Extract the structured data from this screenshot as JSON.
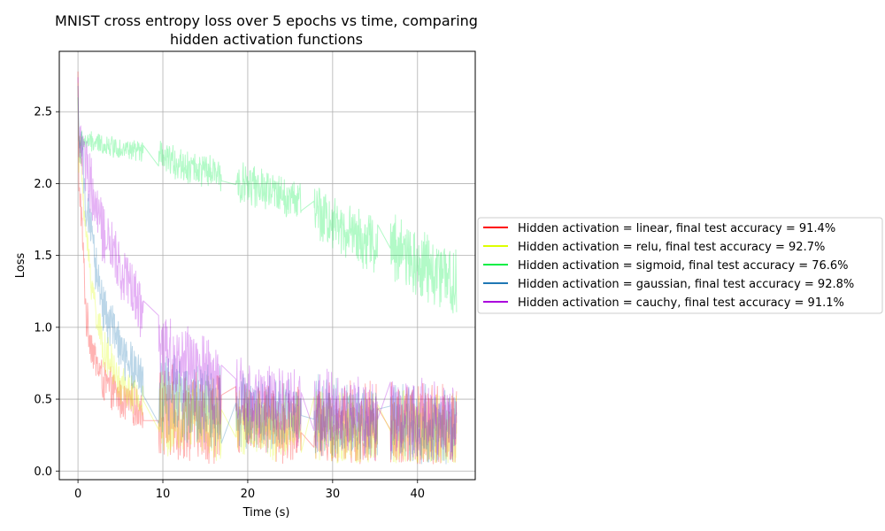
{
  "chart_data": {
    "type": "line",
    "title_lines": [
      "MNIST cross entropy loss over 5 epochs vs time, comparing",
      "hidden activation functions"
    ],
    "xlabel": "Time (s)",
    "ylabel": "Loss",
    "xlim": [
      -2.2,
      46.8
    ],
    "ylim": [
      -0.06,
      2.92
    ],
    "xticks": [
      0,
      10,
      20,
      30,
      40
    ],
    "yticks": [
      0.0,
      0.5,
      1.0,
      1.5,
      2.0,
      2.5
    ],
    "xtick_labels": [
      "0",
      "10",
      "20",
      "30",
      "40"
    ],
    "ytick_labels": [
      "0.0",
      "0.5",
      "1.0",
      "1.5",
      "2.0",
      "2.5"
    ],
    "grid": true,
    "legend_position": "outside-right",
    "epoch_segments": [
      [
        0.1,
        7.7
      ],
      [
        9.5,
        16.9
      ],
      [
        18.6,
        26.3
      ],
      [
        27.8,
        35.3
      ],
      [
        36.8,
        44.6
      ]
    ],
    "series": [
      {
        "name": "Hidden activation = linear, final test accuracy = 91.4%",
        "color": "#ff0000",
        "start": 2.78,
        "points": [
          [
            0.3,
            1.9
          ],
          [
            1,
            1.05
          ],
          [
            2,
            0.78
          ],
          [
            3,
            0.62
          ],
          [
            5,
            0.5
          ],
          [
            7.5,
            0.42
          ],
          [
            9.5,
            0.4
          ],
          [
            12,
            0.38
          ],
          [
            16.9,
            0.35
          ],
          [
            18.6,
            0.36
          ],
          [
            22,
            0.34
          ],
          [
            26.3,
            0.33
          ],
          [
            27.8,
            0.34
          ],
          [
            31,
            0.32
          ],
          [
            35.3,
            0.31
          ],
          [
            36.8,
            0.32
          ],
          [
            40,
            0.31
          ],
          [
            44.6,
            0.3
          ]
        ],
        "noise": [
          0.1,
          0.22,
          0.18,
          0.22,
          0.22
        ]
      },
      {
        "name": "Hidden activation = relu, final test accuracy = 92.7%",
        "color": "#ddff00",
        "start": 2.7,
        "points": [
          [
            0.3,
            2.2
          ],
          [
            1,
            1.6
          ],
          [
            2,
            1.15
          ],
          [
            3,
            0.85
          ],
          [
            5,
            0.6
          ],
          [
            7.5,
            0.48
          ],
          [
            9.5,
            0.42
          ],
          [
            12,
            0.4
          ],
          [
            16.9,
            0.36
          ],
          [
            18.6,
            0.34
          ],
          [
            22,
            0.32
          ],
          [
            26.3,
            0.3
          ],
          [
            27.8,
            0.3
          ],
          [
            31,
            0.29
          ],
          [
            35.3,
            0.27
          ],
          [
            36.8,
            0.28
          ],
          [
            40,
            0.27
          ],
          [
            44.6,
            0.26
          ]
        ],
        "noise": [
          0.1,
          0.2,
          0.17,
          0.2,
          0.2
        ]
      },
      {
        "name": "Hidden activation = sigmoid, final test accuracy = 76.6%",
        "color": "#00ee44",
        "start": 2.6,
        "points": [
          [
            0.3,
            2.3
          ],
          [
            3,
            2.27
          ],
          [
            7.7,
            2.22
          ],
          [
            9.5,
            2.18
          ],
          [
            13,
            2.12
          ],
          [
            16.9,
            2.05
          ],
          [
            18.6,
            2.02
          ],
          [
            22,
            1.95
          ],
          [
            26.3,
            1.88
          ],
          [
            27.8,
            1.8
          ],
          [
            31,
            1.7
          ],
          [
            35.3,
            1.55
          ],
          [
            36.8,
            1.55
          ],
          [
            40,
            1.45
          ],
          [
            44.6,
            1.3
          ]
        ],
        "noise": [
          0.05,
          0.08,
          0.1,
          0.14,
          0.18
        ]
      },
      {
        "name": "Hidden activation = gaussian, final test accuracy = 92.8%",
        "color": "#1f77b4",
        "start": 2.68,
        "points": [
          [
            0.3,
            2.25
          ],
          [
            1,
            1.85
          ],
          [
            2,
            1.45
          ],
          [
            3,
            1.15
          ],
          [
            5,
            0.85
          ],
          [
            7.5,
            0.62
          ],
          [
            9.5,
            0.55
          ],
          [
            12,
            0.5
          ],
          [
            16.9,
            0.45
          ],
          [
            18.6,
            0.44
          ],
          [
            22,
            0.4
          ],
          [
            26.3,
            0.38
          ],
          [
            27.8,
            0.37
          ],
          [
            31,
            0.35
          ],
          [
            35.3,
            0.32
          ],
          [
            36.8,
            0.32
          ],
          [
            40,
            0.31
          ],
          [
            44.6,
            0.3
          ]
        ],
        "noise": [
          0.12,
          0.2,
          0.18,
          0.2,
          0.2
        ]
      },
      {
        "name": "Hidden activation = cauchy, final test accuracy = 91.1%",
        "color": "#aa00dd",
        "start": 2.74,
        "points": [
          [
            0.3,
            2.3
          ],
          [
            1,
            2.1
          ],
          [
            2,
            1.85
          ],
          [
            3,
            1.65
          ],
          [
            5,
            1.4
          ],
          [
            7.5,
            1.15
          ],
          [
            9.5,
            0.9
          ],
          [
            12,
            0.75
          ],
          [
            16.9,
            0.6
          ],
          [
            18.6,
            0.55
          ],
          [
            22,
            0.48
          ],
          [
            26.3,
            0.44
          ],
          [
            27.8,
            0.43
          ],
          [
            31,
            0.4
          ],
          [
            35.3,
            0.38
          ],
          [
            36.8,
            0.37
          ],
          [
            40,
            0.35
          ],
          [
            44.6,
            0.34
          ]
        ],
        "noise": [
          0.15,
          0.2,
          0.18,
          0.2,
          0.2
        ]
      }
    ]
  }
}
